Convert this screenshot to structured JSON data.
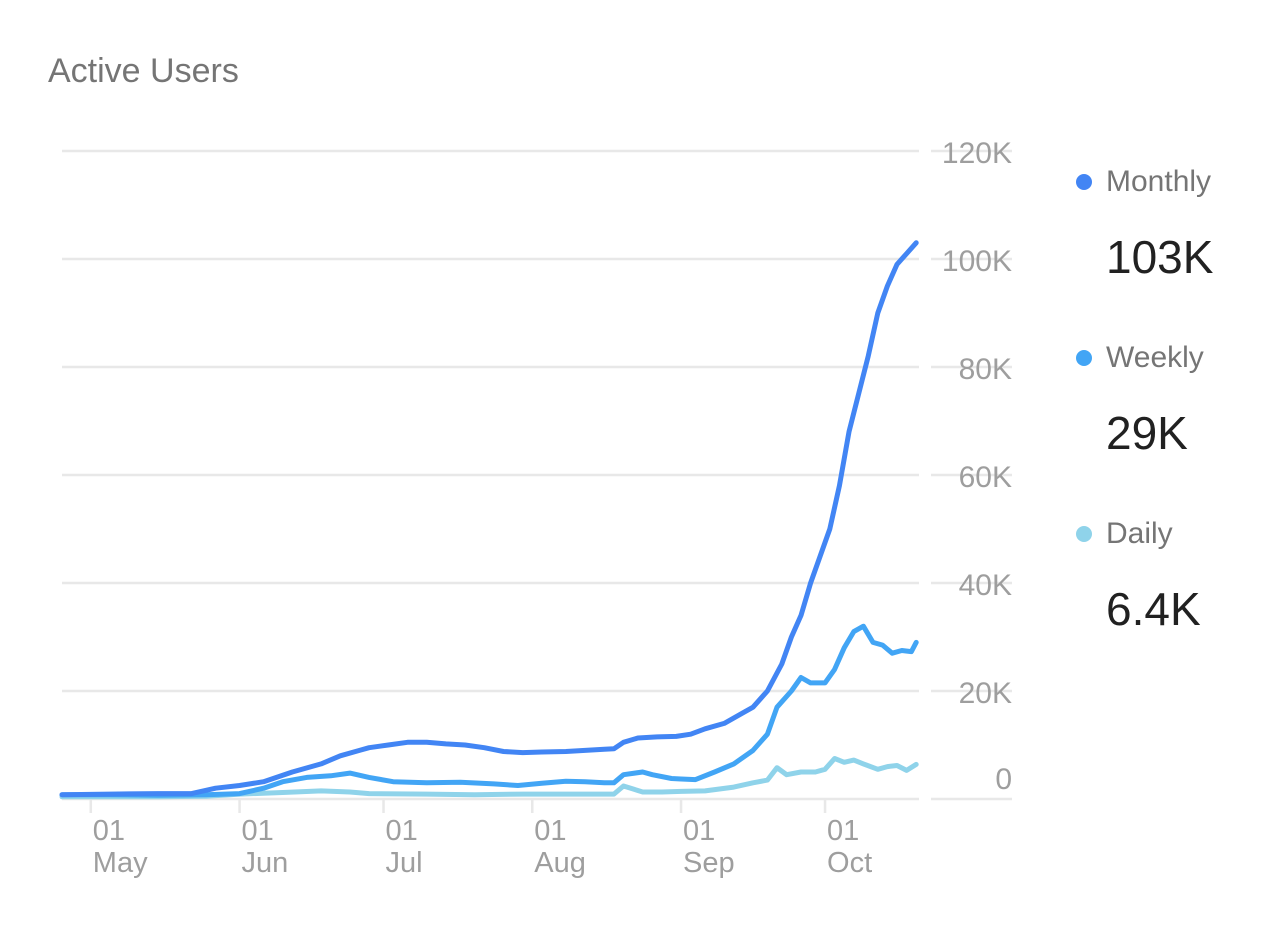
{
  "title": "Active Users",
  "colors": {
    "monthly": "#4285f4",
    "weekly": "#42a5f5",
    "daily": "#8fd3ea",
    "grid": "#e8e8e8",
    "axis_text": "#9e9e9e"
  },
  "legend": [
    {
      "name": "Monthly",
      "value": "103K"
    },
    {
      "name": "Weekly",
      "value": "29K"
    },
    {
      "name": "Daily",
      "value": "6.4K"
    }
  ],
  "chart_data": {
    "type": "line",
    "title": "Active Users",
    "xlabel": "",
    "ylabel": "",
    "ylim": [
      0,
      120000
    ],
    "grid": true,
    "legend_position": "right",
    "y_ticks": [
      {
        "value": 0,
        "label": "0"
      },
      {
        "value": 20000,
        "label": "20K"
      },
      {
        "value": 40000,
        "label": "40K"
      },
      {
        "value": 60000,
        "label": "60K"
      },
      {
        "value": 80000,
        "label": "80K"
      },
      {
        "value": 100000,
        "label": "100K"
      },
      {
        "value": 120000,
        "label": "120K"
      }
    ],
    "x_ticks": [
      {
        "date": "2018-05-01",
        "day": "01",
        "month": "May"
      },
      {
        "date": "2018-06-01",
        "day": "01",
        "month": "Jun"
      },
      {
        "date": "2018-07-01",
        "day": "01",
        "month": "Jul"
      },
      {
        "date": "2018-08-01",
        "day": "01",
        "month": "Aug"
      },
      {
        "date": "2018-09-01",
        "day": "01",
        "month": "Sep"
      },
      {
        "date": "2018-10-01",
        "day": "01",
        "month": "Oct"
      }
    ],
    "x_range": [
      "2018-04-25",
      "2018-10-21"
    ],
    "series": [
      {
        "name": "Monthly",
        "key": "monthly",
        "points": [
          [
            "2018-04-25",
            800
          ],
          [
            "2018-05-05",
            900
          ],
          [
            "2018-05-15",
            1000
          ],
          [
            "2018-05-22",
            1000
          ],
          [
            "2018-05-27",
            2000
          ],
          [
            "2018-06-01",
            2500
          ],
          [
            "2018-06-06",
            3200
          ],
          [
            "2018-06-12",
            5000
          ],
          [
            "2018-06-18",
            6500
          ],
          [
            "2018-06-22",
            8000
          ],
          [
            "2018-06-26",
            9000
          ],
          [
            "2018-06-28",
            9500
          ],
          [
            "2018-07-02",
            10000
          ],
          [
            "2018-07-06",
            10500
          ],
          [
            "2018-07-10",
            10500
          ],
          [
            "2018-07-14",
            10200
          ],
          [
            "2018-07-18",
            10000
          ],
          [
            "2018-07-22",
            9500
          ],
          [
            "2018-07-26",
            8800
          ],
          [
            "2018-07-30",
            8600
          ],
          [
            "2018-08-03",
            8700
          ],
          [
            "2018-08-08",
            8800
          ],
          [
            "2018-08-12",
            9000
          ],
          [
            "2018-08-16",
            9200
          ],
          [
            "2018-08-18",
            9300
          ],
          [
            "2018-08-20",
            10500
          ],
          [
            "2018-08-23",
            11300
          ],
          [
            "2018-08-27",
            11500
          ],
          [
            "2018-08-31",
            11600
          ],
          [
            "2018-09-03",
            12000
          ],
          [
            "2018-09-06",
            13000
          ],
          [
            "2018-09-10",
            14000
          ],
          [
            "2018-09-14",
            16000
          ],
          [
            "2018-09-16",
            17000
          ],
          [
            "2018-09-19",
            20000
          ],
          [
            "2018-09-22",
            25000
          ],
          [
            "2018-09-24",
            30000
          ],
          [
            "2018-09-26",
            34000
          ],
          [
            "2018-09-28",
            40000
          ],
          [
            "2018-09-30",
            45000
          ],
          [
            "2018-10-02",
            50000
          ],
          [
            "2018-10-04",
            58000
          ],
          [
            "2018-10-06",
            68000
          ],
          [
            "2018-10-08",
            75000
          ],
          [
            "2018-10-10",
            82000
          ],
          [
            "2018-10-12",
            90000
          ],
          [
            "2018-10-14",
            95000
          ],
          [
            "2018-10-16",
            99000
          ],
          [
            "2018-10-18",
            101000
          ],
          [
            "2018-10-20",
            103000
          ]
        ]
      },
      {
        "name": "Weekly",
        "key": "weekly",
        "points": [
          [
            "2018-04-25",
            800
          ],
          [
            "2018-05-05",
            800
          ],
          [
            "2018-05-15",
            700
          ],
          [
            "2018-05-25",
            800
          ],
          [
            "2018-06-01",
            1000
          ],
          [
            "2018-06-06",
            2000
          ],
          [
            "2018-06-10",
            3200
          ],
          [
            "2018-06-15",
            4000
          ],
          [
            "2018-06-20",
            4300
          ],
          [
            "2018-06-24",
            4800
          ],
          [
            "2018-06-28",
            4000
          ],
          [
            "2018-07-03",
            3200
          ],
          [
            "2018-07-10",
            3000
          ],
          [
            "2018-07-17",
            3100
          ],
          [
            "2018-07-24",
            2800
          ],
          [
            "2018-07-29",
            2500
          ],
          [
            "2018-08-03",
            2900
          ],
          [
            "2018-08-08",
            3300
          ],
          [
            "2018-08-12",
            3200
          ],
          [
            "2018-08-16",
            3000
          ],
          [
            "2018-08-18",
            3000
          ],
          [
            "2018-08-20",
            4500
          ],
          [
            "2018-08-24",
            5000
          ],
          [
            "2018-08-26",
            4500
          ],
          [
            "2018-08-30",
            3800
          ],
          [
            "2018-09-01",
            3700
          ],
          [
            "2018-09-04",
            3600
          ],
          [
            "2018-09-08",
            5000
          ],
          [
            "2018-09-12",
            6500
          ],
          [
            "2018-09-16",
            9000
          ],
          [
            "2018-09-19",
            12000
          ],
          [
            "2018-09-21",
            17000
          ],
          [
            "2018-09-24",
            20000
          ],
          [
            "2018-09-26",
            22500
          ],
          [
            "2018-09-28",
            21500
          ],
          [
            "2018-10-01",
            21500
          ],
          [
            "2018-10-03",
            24000
          ],
          [
            "2018-10-05",
            28000
          ],
          [
            "2018-10-07",
            31000
          ],
          [
            "2018-10-09",
            32000
          ],
          [
            "2018-10-11",
            29000
          ],
          [
            "2018-10-13",
            28500
          ],
          [
            "2018-10-15",
            27000
          ],
          [
            "2018-10-17",
            27500
          ],
          [
            "2018-10-19",
            27300
          ],
          [
            "2018-10-20",
            29000
          ]
        ]
      },
      {
        "name": "Daily",
        "key": "daily",
        "points": [
          [
            "2018-04-25",
            400
          ],
          [
            "2018-05-05",
            400
          ],
          [
            "2018-05-15",
            400
          ],
          [
            "2018-05-25",
            500
          ],
          [
            "2018-06-01",
            900
          ],
          [
            "2018-06-10",
            1200
          ],
          [
            "2018-06-18",
            1500
          ],
          [
            "2018-06-24",
            1300
          ],
          [
            "2018-06-28",
            1000
          ],
          [
            "2018-07-10",
            900
          ],
          [
            "2018-07-20",
            800
          ],
          [
            "2018-07-30",
            900
          ],
          [
            "2018-08-10",
            900
          ],
          [
            "2018-08-18",
            900
          ],
          [
            "2018-08-20",
            2400
          ],
          [
            "2018-08-24",
            1300
          ],
          [
            "2018-08-28",
            1300
          ],
          [
            "2018-09-01",
            1400
          ],
          [
            "2018-09-06",
            1500
          ],
          [
            "2018-09-12",
            2200
          ],
          [
            "2018-09-16",
            3000
          ],
          [
            "2018-09-19",
            3500
          ],
          [
            "2018-09-21",
            5800
          ],
          [
            "2018-09-23",
            4500
          ],
          [
            "2018-09-26",
            5000
          ],
          [
            "2018-09-29",
            5000
          ],
          [
            "2018-10-01",
            5500
          ],
          [
            "2018-10-03",
            7500
          ],
          [
            "2018-10-05",
            6800
          ],
          [
            "2018-10-07",
            7200
          ],
          [
            "2018-10-09",
            6500
          ],
          [
            "2018-10-12",
            5500
          ],
          [
            "2018-10-14",
            6000
          ],
          [
            "2018-10-16",
            6200
          ],
          [
            "2018-10-18",
            5300
          ],
          [
            "2018-10-20",
            6400
          ]
        ]
      }
    ]
  }
}
